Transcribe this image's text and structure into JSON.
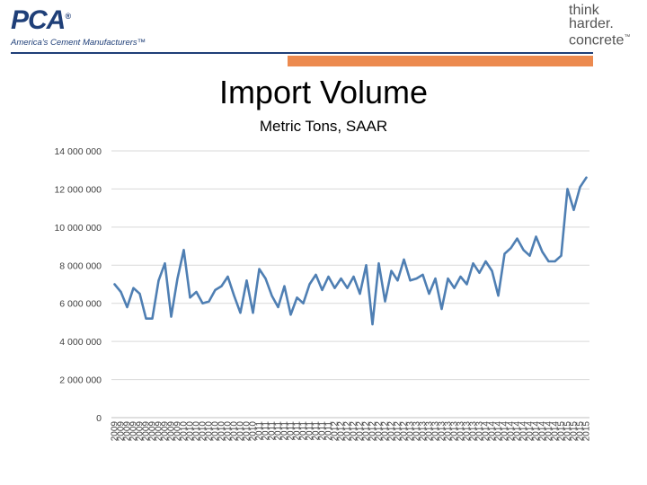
{
  "header": {
    "left_logo": "PCA",
    "left_logo_mark": "®",
    "left_tagline": "America's Cement Manufacturers™",
    "right_logo_lines": [
      "think",
      "harder.",
      "concrete"
    ],
    "right_logo_mark": "™"
  },
  "colors": {
    "accent_bar": "#ec8a4f",
    "brand_blue": "#1f3f78",
    "series_line": "#4f7fb3",
    "gridline": "#d9d9d9"
  },
  "chart_data": {
    "type": "line",
    "title": "Import Volume",
    "subtitle": "Metric Tons, SAAR",
    "xlabel": "",
    "ylabel": "",
    "ylim": [
      0,
      14000000
    ],
    "yticks": [
      0,
      2000000,
      4000000,
      6000000,
      8000000,
      10000000,
      12000000,
      14000000
    ],
    "ytick_labels": [
      "0",
      "2 000 000",
      "4 000 000",
      "6 000 000",
      "8 000 000",
      "10 000 000",
      "12 000 000",
      "14 000 000"
    ],
    "grid": true,
    "legend": "none",
    "categories": [
      "2009",
      "2009",
      "2009",
      "2009",
      "2009",
      "2009",
      "2009",
      "2009",
      "2009",
      "2009",
      "2009",
      "2010",
      "2010",
      "2010",
      "2010",
      "2010",
      "2010",
      "2010",
      "2010",
      "2010",
      "2010",
      "2010",
      "2010",
      "2011",
      "2011",
      "2011",
      "2011",
      "2011",
      "2011",
      "2011",
      "2011",
      "2011",
      "2011",
      "2011",
      "2011",
      "2012",
      "2012",
      "2012",
      "2012",
      "2012",
      "2012",
      "2012",
      "2012",
      "2012",
      "2012",
      "2012",
      "2012",
      "2013",
      "2013",
      "2013",
      "2013",
      "2013",
      "2013",
      "2013",
      "2013",
      "2013",
      "2013",
      "2013",
      "2013",
      "2014",
      "2014",
      "2014",
      "2014",
      "2014",
      "2014",
      "2014",
      "2014",
      "2014",
      "2014",
      "2014",
      "2014",
      "2015",
      "2015",
      "2015",
      "2015",
      "2015"
    ],
    "series": [
      {
        "name": "Import Volume",
        "values": [
          7000000,
          6600000,
          5800000,
          6800000,
          6500000,
          5200000,
          5200000,
          7200000,
          8100000,
          5300000,
          7300000,
          8800000,
          6300000,
          6600000,
          6000000,
          6100000,
          6700000,
          6900000,
          7400000,
          6400000,
          5500000,
          7200000,
          5500000,
          7800000,
          7300000,
          6400000,
          5800000,
          6900000,
          5400000,
          6300000,
          6000000,
          7000000,
          7500000,
          6700000,
          7400000,
          6800000,
          7300000,
          6800000,
          7400000,
          6500000,
          8000000,
          4900000,
          8100000,
          6100000,
          7700000,
          7200000,
          8300000,
          7200000,
          7300000,
          7500000,
          6500000,
          7300000,
          5700000,
          7300000,
          6800000,
          7400000,
          7000000,
          8100000,
          7600000,
          8200000,
          7700000,
          6400000,
          8600000,
          8900000,
          9400000,
          8800000,
          8500000,
          9500000,
          8700000,
          8200000,
          8200000,
          8500000,
          12000000,
          10900000,
          12100000,
          12600000
        ]
      }
    ]
  }
}
